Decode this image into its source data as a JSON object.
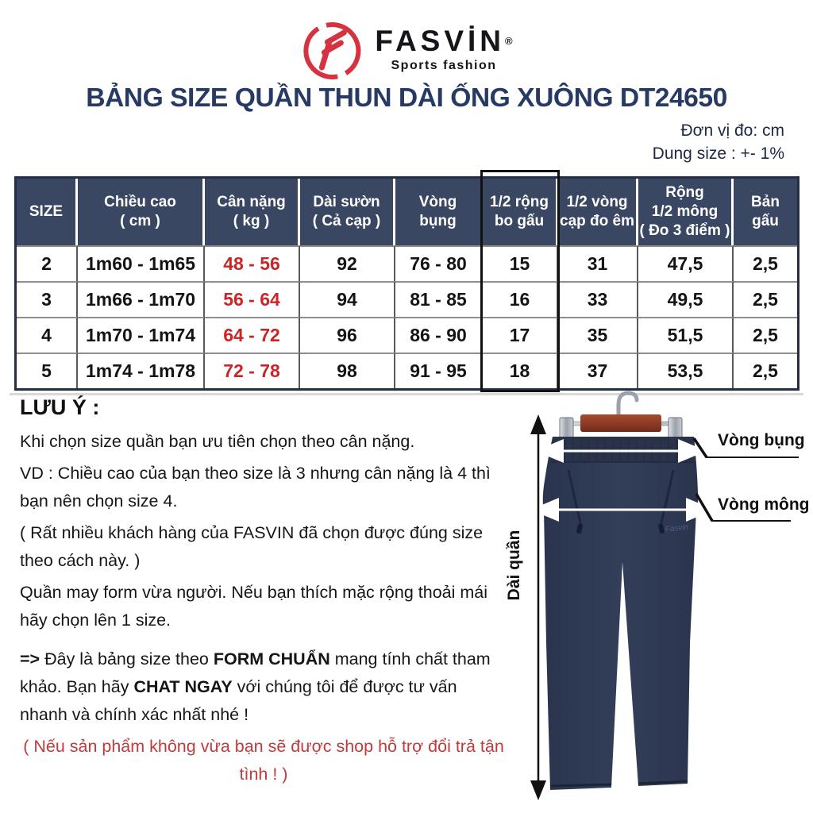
{
  "brand": {
    "name": "FASVİN",
    "reg": "®",
    "tagline": "Sports fashion"
  },
  "title": "BẢNG SIZE QUẦN THUN DÀI ỐNG XUÔNG DT24650",
  "units": {
    "line1": "Đơn vị đo: cm",
    "line2": "Dung size : +- 1%"
  },
  "table": {
    "headers": [
      "SIZE",
      "Chiều cao\n( cm )",
      "Cân nặng\n( kg )",
      "Dài sườn\n( Cả cạp )",
      "Vòng\nbụng",
      "1/2 rộng\nbo gấu",
      "1/2 vòng\ncạp đo êm",
      "Rộng\n1/2 mông\n( Đo 3 điểm )",
      "Bản\ngấu"
    ],
    "rows": [
      [
        "2",
        "1m60 - 1m65",
        "48 - 56",
        "92",
        "76 - 80",
        "15",
        "31",
        "47,5",
        "2,5"
      ],
      [
        "3",
        "1m66 - 1m70",
        "56 - 64",
        "94",
        "81 - 85",
        "16",
        "33",
        "49,5",
        "2,5"
      ],
      [
        "4",
        "1m70 - 1m74",
        "64 - 72",
        "96",
        "86 - 90",
        "17",
        "35",
        "51,5",
        "2,5"
      ],
      [
        "5",
        "1m74 - 1m78",
        "72 - 78",
        "98",
        "91 - 95",
        "18",
        "37",
        "53,5",
        "2,5"
      ]
    ],
    "highlighted_column": "1/2 rộng bo gấu",
    "weight_column_color": "#cc2527"
  },
  "notes": {
    "heading": "LƯU Ý :",
    "p1": "Khi chọn size quần bạn ưu tiên chọn theo cân nặng.",
    "p2": "VD : Chiều cao của bạn theo size là 3 nhưng cân nặng là 4 thì bạn nên chọn size 4.",
    "p3": "( Rất nhiều khách hàng của FASVIN đã chọn được đúng size theo cách này. )",
    "p4": "Quần may form vừa người. Nếu bạn thích mặc rộng thoải mái hãy chọn lên 1 size.",
    "p5_arrow": "=>",
    "p5_a": " Đây là bảng size theo ",
    "p5_b1": "FORM CHUẨN",
    "p5_c": " mang tính chất tham khảo. Bạn hãy ",
    "p5_b2": "CHAT NGAY",
    "p5_d": " với chúng tôi để được tư vấn nhanh và chính xác nhất nhé !",
    "p6": "( Nếu sản phẩm không vừa bạn sẽ được shop hỗ trợ đổi trả tận tình ! )"
  },
  "pants_labels": {
    "waist": "Vòng bụng",
    "hip": "Vòng mông",
    "length": "Dài quần"
  },
  "colors": {
    "header_navy": "#3a4763",
    "title_navy": "#263a63",
    "accent_red": "#cc2527",
    "note_red": "#c13a3c",
    "logo_red": "#d5333f",
    "pants_navy": "#303b55"
  }
}
